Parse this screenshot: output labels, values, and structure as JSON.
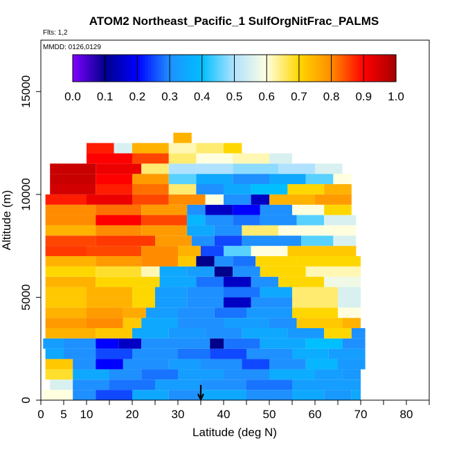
{
  "chart_data": {
    "type": "heatmap",
    "title": "ATOM2 Northeast_Pacific_1 SulfOrgNitFrac_PALMS",
    "flights_label": "Flts: 1,2",
    "dates_label": "MMDD: 0126,0129",
    "xlabel": "Latitude (deg N)",
    "ylabel": "Altitude (m)",
    "xlim": [
      0,
      85
    ],
    "ylim": [
      0,
      17500
    ],
    "x_ticks": [
      0,
      5,
      10,
      20,
      30,
      40,
      50,
      60,
      70,
      80
    ],
    "x_minor_ticks": [
      15,
      25,
      35,
      45,
      55,
      65,
      75,
      85
    ],
    "y_ticks": [
      0,
      5000,
      10000,
      15000
    ],
    "marker_latitude": 35,
    "colorbar": {
      "ticks": [
        "0.0",
        "0.1",
        "0.2",
        "0.3",
        "0.4",
        "0.5",
        "0.6",
        "0.7",
        "0.8",
        "0.9",
        "1.0"
      ],
      "range": [
        0,
        1
      ],
      "colors": [
        "#7f00ff",
        "#00008b",
        "#0000ff",
        "#1e90ff",
        "#00bfff",
        "#b0e2ff",
        "#ffffe0",
        "#ffd700",
        "#ff8c00",
        "#ff0000",
        "#a50000"
      ]
    },
    "layers": [
      {
        "alt": 250,
        "x0": 0.5,
        "x1": 70,
        "segments": [
          [
            0.5,
            0.6
          ],
          [
            7,
            0.3
          ],
          [
            12,
            0.25
          ],
          [
            20,
            0.35
          ],
          [
            28,
            0.3
          ],
          [
            35,
            0.35
          ],
          [
            45,
            0.3
          ],
          [
            55,
            0.35
          ],
          [
            62,
            0.32
          ],
          [
            68,
            0.35
          ]
        ]
      },
      {
        "alt": 750,
        "x0": 2,
        "x1": 70,
        "segments": [
          [
            2,
            0.55
          ],
          [
            7,
            0.3
          ],
          [
            15,
            0.28
          ],
          [
            25,
            0.33
          ],
          [
            35,
            0.3
          ],
          [
            45,
            0.28
          ],
          [
            55,
            0.33
          ],
          [
            65,
            0.33
          ]
        ]
      },
      {
        "alt": 1250,
        "x0": 1,
        "x1": 70,
        "segments": [
          [
            1,
            0.68
          ],
          [
            7,
            0.35
          ],
          [
            15,
            0.3
          ],
          [
            22,
            0.28
          ],
          [
            30,
            0.33
          ],
          [
            40,
            0.3
          ],
          [
            50,
            0.36
          ],
          [
            60,
            0.33
          ],
          [
            66,
            0.32
          ]
        ]
      },
      {
        "alt": 1750,
        "x0": 1,
        "x1": 71,
        "segments": [
          [
            1,
            0.72
          ],
          [
            7,
            0.3
          ],
          [
            12,
            0.2
          ],
          [
            18,
            0.3
          ],
          [
            28,
            0.33
          ],
          [
            35,
            0.3
          ],
          [
            44,
            0.25
          ],
          [
            50,
            0.3
          ],
          [
            58,
            0.38
          ],
          [
            65,
            0.32
          ]
        ]
      },
      {
        "alt": 2250,
        "x0": 1,
        "x1": 71,
        "segments": [
          [
            1,
            0.35
          ],
          [
            5,
            0.3
          ],
          [
            12,
            0.25
          ],
          [
            20,
            0.3
          ],
          [
            30,
            0.28
          ],
          [
            37,
            0.25
          ],
          [
            45,
            0.3
          ],
          [
            55,
            0.36
          ],
          [
            63,
            0.33
          ]
        ]
      },
      {
        "alt": 2750,
        "x0": 0.5,
        "x1": 71,
        "segments": [
          [
            0.5,
            0.33
          ],
          [
            5,
            0.3
          ],
          [
            12,
            0.2
          ],
          [
            17,
            0.15
          ],
          [
            22,
            0.3
          ],
          [
            30,
            0.3
          ],
          [
            37,
            0.1
          ],
          [
            40,
            0.28
          ],
          [
            48,
            0.35
          ],
          [
            58,
            0.4
          ],
          [
            66,
            0.3
          ]
        ]
      },
      {
        "alt": 3250,
        "x0": 1,
        "x1": 71,
        "segments": [
          [
            1,
            0.75
          ],
          [
            12,
            0.72
          ],
          [
            20,
            0.35
          ],
          [
            28,
            0.32
          ],
          [
            36,
            0.3
          ],
          [
            44,
            0.35
          ],
          [
            54,
            0.32
          ],
          [
            62,
            0.7
          ],
          [
            68,
            0.3
          ]
        ]
      },
      {
        "alt": 3750,
        "x0": 1,
        "x1": 70,
        "segments": [
          [
            1,
            0.78
          ],
          [
            10,
            0.8
          ],
          [
            18,
            0.72
          ],
          [
            22,
            0.35
          ],
          [
            30,
            0.3
          ],
          [
            40,
            0.33
          ],
          [
            50,
            0.3
          ],
          [
            56,
            0.72
          ],
          [
            66,
            0.75
          ]
        ]
      },
      {
        "alt": 4250,
        "x0": 1,
        "x1": 70,
        "segments": [
          [
            1,
            0.75
          ],
          [
            10,
            0.78
          ],
          [
            18,
            0.76
          ],
          [
            23,
            0.33
          ],
          [
            30,
            0.3
          ],
          [
            38,
            0.28
          ],
          [
            45,
            0.32
          ],
          [
            55,
            0.7
          ],
          [
            65,
            0.6
          ]
        ]
      },
      {
        "alt": 4750,
        "x0": 1,
        "x1": 70,
        "segments": [
          [
            1,
            0.72
          ],
          [
            10,
            0.75
          ],
          [
            20,
            0.7
          ],
          [
            25,
            0.33
          ],
          [
            32,
            0.3
          ],
          [
            40,
            0.15
          ],
          [
            46,
            0.3
          ],
          [
            55,
            0.65
          ],
          [
            65,
            0.55
          ]
        ]
      },
      {
        "alt": 5250,
        "x0": 1,
        "x1": 70,
        "segments": [
          [
            1,
            0.72
          ],
          [
            10,
            0.75
          ],
          [
            20,
            0.7
          ],
          [
            25,
            0.33
          ],
          [
            32,
            0.3
          ],
          [
            40,
            0.28
          ],
          [
            48,
            0.35
          ],
          [
            55,
            0.65
          ],
          [
            65,
            0.55
          ]
        ]
      },
      {
        "alt": 5750,
        "x0": 1,
        "x1": 70,
        "segments": [
          [
            1,
            0.75
          ],
          [
            12,
            0.7
          ],
          [
            20,
            0.7
          ],
          [
            26,
            0.35
          ],
          [
            34,
            0.28
          ],
          [
            40,
            0.15
          ],
          [
            46,
            0.3
          ],
          [
            52,
            0.7
          ],
          [
            62,
            0.58
          ]
        ]
      },
      {
        "alt": 6250,
        "x0": 1,
        "x1": 70,
        "segments": [
          [
            1,
            0.7
          ],
          [
            12,
            0.68
          ],
          [
            22,
            0.62
          ],
          [
            26,
            0.35
          ],
          [
            32,
            0.33
          ],
          [
            38,
            0.1
          ],
          [
            42,
            0.3
          ],
          [
            48,
            0.7
          ],
          [
            58,
            0.62
          ]
        ]
      },
      {
        "alt": 6750,
        "x0": 1,
        "x1": 70,
        "segments": [
          [
            1,
            0.75
          ],
          [
            12,
            0.78
          ],
          [
            22,
            0.8
          ],
          [
            30,
            0.72
          ],
          [
            34,
            0.1
          ],
          [
            38,
            0.3
          ],
          [
            42,
            0.28
          ],
          [
            47,
            0.7
          ],
          [
            56,
            0.7
          ]
        ]
      },
      {
        "alt": 7250,
        "x0": 1,
        "x1": 69,
        "segments": [
          [
            1,
            0.86
          ],
          [
            10,
            0.85
          ],
          [
            22,
            0.8
          ],
          [
            30,
            0.75
          ],
          [
            35,
            0.25
          ],
          [
            40,
            0.45
          ],
          [
            46,
            0.6
          ],
          [
            54,
            0.72
          ]
        ]
      },
      {
        "alt": 7750,
        "x0": 1,
        "x1": 69,
        "segments": [
          [
            1,
            0.85
          ],
          [
            12,
            0.86
          ],
          [
            25,
            0.78
          ],
          [
            33,
            0.3
          ],
          [
            38,
            0.25
          ],
          [
            44,
            0.3
          ],
          [
            50,
            0.3
          ],
          [
            57,
            0.45
          ],
          [
            64,
            0.55
          ]
        ]
      },
      {
        "alt": 8250,
        "x0": 1,
        "x1": 69,
        "segments": [
          [
            1,
            0.75
          ],
          [
            12,
            0.8
          ],
          [
            22,
            0.78
          ],
          [
            32,
            0.35
          ],
          [
            38,
            0.3
          ],
          [
            44,
            0.65
          ],
          [
            52,
            0.6
          ],
          [
            60,
            0.6
          ]
        ]
      },
      {
        "alt": 8750,
        "x0": 1,
        "x1": 69,
        "segments": [
          [
            1,
            0.8
          ],
          [
            12,
            0.9
          ],
          [
            22,
            0.85
          ],
          [
            32,
            0.38
          ],
          [
            36,
            0.3
          ],
          [
            42,
            0.28
          ],
          [
            48,
            0.3
          ],
          [
            56,
            0.45
          ],
          [
            62,
            0.55
          ]
        ]
      },
      {
        "alt": 9250,
        "x0": 1,
        "x1": 68,
        "segments": [
          [
            1,
            0.8
          ],
          [
            12,
            0.82
          ],
          [
            22,
            0.78
          ],
          [
            32,
            0.3
          ],
          [
            36,
            0.15
          ],
          [
            42,
            0.2
          ],
          [
            48,
            0.3
          ],
          [
            55,
            0.6
          ],
          [
            62,
            0.7
          ]
        ]
      },
      {
        "alt": 9750,
        "x0": 1,
        "x1": 68,
        "segments": [
          [
            1,
            0.88
          ],
          [
            10,
            0.92
          ],
          [
            20,
            0.85
          ],
          [
            28,
            0.8
          ],
          [
            36,
            0.6
          ],
          [
            40,
            0.3
          ],
          [
            46,
            0.15
          ],
          [
            50,
            0.75
          ],
          [
            60,
            0.78
          ]
        ]
      },
      {
        "alt": 10250,
        "x0": 2,
        "x1": 68,
        "segments": [
          [
            2,
            0.95
          ],
          [
            12,
            0.88
          ],
          [
            20,
            0.82
          ],
          [
            28,
            0.65
          ],
          [
            34,
            0.3
          ],
          [
            40,
            0.35
          ],
          [
            46,
            0.4
          ],
          [
            54,
            0.7
          ],
          [
            62,
            0.75
          ]
        ]
      },
      {
        "alt": 10750,
        "x0": 2,
        "x1": 68,
        "segments": [
          [
            2,
            0.96
          ],
          [
            12,
            0.9
          ],
          [
            20,
            0.78
          ],
          [
            28,
            0.45
          ],
          [
            34,
            0.35
          ],
          [
            42,
            0.3
          ],
          [
            50,
            0.35
          ],
          [
            58,
            0.45
          ],
          [
            64,
            0.6
          ]
        ]
      },
      {
        "alt": 11250,
        "x0": 2,
        "x1": 66,
        "segments": [
          [
            2,
            0.96
          ],
          [
            12,
            0.92
          ],
          [
            22,
            0.65
          ],
          [
            28,
            0.5
          ],
          [
            34,
            0.5
          ],
          [
            42,
            0.48
          ],
          [
            52,
            0.5
          ],
          [
            60,
            0.55
          ]
        ]
      },
      {
        "alt": 11750,
        "x0": 10,
        "x1": 55,
        "segments": [
          [
            10,
            0.9
          ],
          [
            20,
            0.85
          ],
          [
            28,
            0.65
          ],
          [
            34,
            0.6
          ],
          [
            42,
            0.62
          ],
          [
            50,
            0.55
          ]
        ]
      },
      {
        "alt": 12250,
        "x0": 10,
        "x1": 44,
        "segments": [
          [
            10,
            0.88
          ],
          [
            16,
            0.55
          ],
          [
            20,
            0.75
          ],
          [
            28,
            0.62
          ],
          [
            34,
            0.65
          ],
          [
            40,
            0.7
          ]
        ]
      },
      {
        "alt": 12750,
        "x0": 29,
        "x1": 33,
        "segments": [
          [
            29,
            0.75
          ]
        ]
      }
    ]
  }
}
